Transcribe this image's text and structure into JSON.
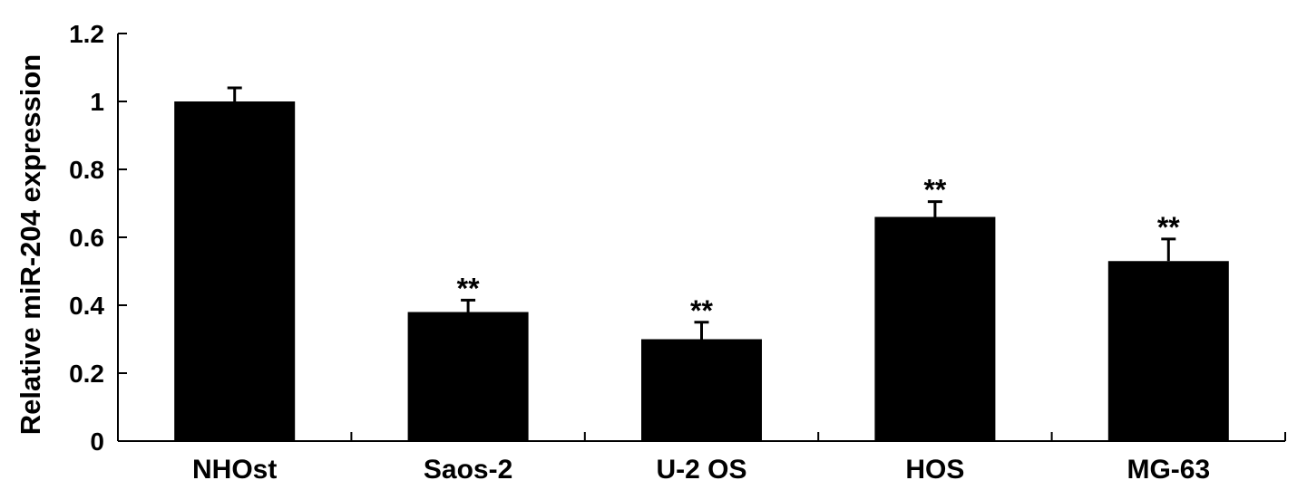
{
  "chart_data": {
    "type": "bar",
    "title": "",
    "xlabel": "",
    "ylabel": "Relative miR-204 expression",
    "ylim": [
      0,
      1.2
    ],
    "yticks": [
      0,
      0.2,
      0.4,
      0.6,
      0.8,
      1.0,
      1.2
    ],
    "ytick_labels": [
      "0",
      "0.2",
      "0.4",
      "0.6",
      "0.8",
      "1",
      "1.2"
    ],
    "categories": [
      "NHOst",
      "Saos-2",
      "U-2 OS",
      "HOS",
      "MG-63"
    ],
    "values": [
      1.0,
      0.38,
      0.3,
      0.66,
      0.53
    ],
    "errors": [
      0.04,
      0.035,
      0.05,
      0.045,
      0.065
    ],
    "significance": [
      "",
      "**",
      "**",
      "**",
      "**"
    ],
    "bar_color": "#000000",
    "grid": false,
    "legend": "none"
  }
}
